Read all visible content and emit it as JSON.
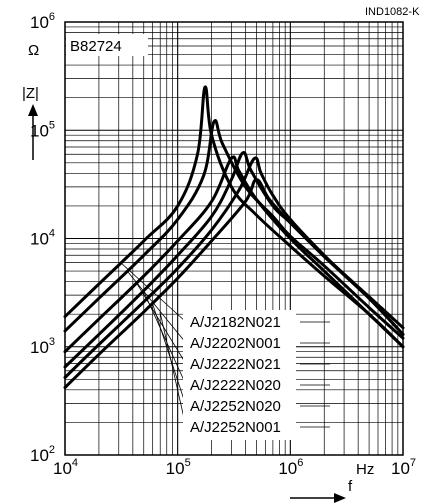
{
  "doc_id": "IND1082-K",
  "chart_data": {
    "type": "line",
    "title": "B82724",
    "xlabel": "f",
    "ylabel": "|Z|",
    "x_unit": "Hz",
    "y_unit": "Ω",
    "x_scale": "log",
    "y_scale": "log",
    "xlim": [
      10000,
      10000000
    ],
    "ylim": [
      100,
      1000000
    ],
    "grid": true,
    "x_ticks": [
      {
        "base": "10",
        "exp": "4"
      },
      {
        "base": "10",
        "exp": "5"
      },
      {
        "base": "10",
        "exp": "6"
      },
      {
        "base": "10",
        "exp": "7"
      }
    ],
    "y_ticks": [
      {
        "base": "10",
        "exp": "2"
      },
      {
        "base": "10",
        "exp": "3"
      },
      {
        "base": "10",
        "exp": "4"
      },
      {
        "base": "10",
        "exp": "5"
      },
      {
        "base": "10",
        "exp": "6"
      }
    ],
    "series": [
      {
        "name": "A/J2182N021",
        "points": [
          [
            10000,
            1900
          ],
          [
            20000,
            3800
          ],
          [
            50000,
            9500
          ],
          [
            100000,
            20000
          ],
          [
            150000,
            60000
          ],
          [
            175000,
            250000
          ],
          [
            200000,
            90000
          ],
          [
            300000,
            30000
          ],
          [
            500000,
            16500
          ],
          [
            1000000,
            8500
          ],
          [
            2000000,
            4500
          ],
          [
            5000000,
            2000
          ],
          [
            10000000,
            1000
          ]
        ]
      },
      {
        "name": "A/J2202N001",
        "points": [
          [
            10000,
            1400
          ],
          [
            20000,
            2800
          ],
          [
            50000,
            7000
          ],
          [
            100000,
            15000
          ],
          [
            170000,
            38000
          ],
          [
            210000,
            120000
          ],
          [
            250000,
            75000
          ],
          [
            400000,
            30000
          ],
          [
            700000,
            16000
          ],
          [
            1000000,
            10500
          ],
          [
            2000000,
            5600
          ],
          [
            5000000,
            2300
          ],
          [
            10000000,
            1200
          ]
        ]
      },
      {
        "name": "A/J2222N021",
        "points": [
          [
            10000,
            900
          ],
          [
            20000,
            1800
          ],
          [
            50000,
            4500
          ],
          [
            100000,
            9500
          ],
          [
            200000,
            22000
          ],
          [
            300000,
            55000
          ],
          [
            350000,
            42000
          ],
          [
            500000,
            23000
          ],
          [
            1000000,
            10000
          ],
          [
            2000000,
            5000
          ],
          [
            5000000,
            2000
          ],
          [
            10000000,
            1000
          ]
        ]
      },
      {
        "name": "A/J2222N020",
        "points": [
          [
            10000,
            650
          ],
          [
            20000,
            1300
          ],
          [
            50000,
            3300
          ],
          [
            100000,
            7000
          ],
          [
            200000,
            16000
          ],
          [
            300000,
            35000
          ],
          [
            380000,
            62000
          ],
          [
            450000,
            42000
          ],
          [
            700000,
            20000
          ],
          [
            1000000,
            14000
          ],
          [
            2000000,
            6800
          ],
          [
            5000000,
            2800
          ],
          [
            10000000,
            1300
          ]
        ]
      },
      {
        "name": "A/J2252N020",
        "points": [
          [
            10000,
            520
          ],
          [
            20000,
            1050
          ],
          [
            50000,
            2600
          ],
          [
            100000,
            5300
          ],
          [
            200000,
            12000
          ],
          [
            350000,
            28000
          ],
          [
            480000,
            55000
          ],
          [
            550000,
            40000
          ],
          [
            700000,
            25000
          ],
          [
            1000000,
            15000
          ],
          [
            2000000,
            7000
          ],
          [
            5000000,
            2800
          ],
          [
            10000000,
            1300
          ]
        ]
      },
      {
        "name": "A/J2252N001",
        "points": [
          [
            10000,
            420
          ],
          [
            20000,
            850
          ],
          [
            50000,
            2100
          ],
          [
            100000,
            4300
          ],
          [
            200000,
            9500
          ],
          [
            400000,
            22000
          ],
          [
            500000,
            35000
          ],
          [
            650000,
            23000
          ],
          [
            1000000,
            14000
          ],
          [
            2000000,
            6900
          ],
          [
            5000000,
            2900
          ],
          [
            10000000,
            1500
          ]
        ]
      }
    ]
  }
}
